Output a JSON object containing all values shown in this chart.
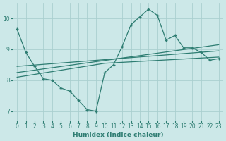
{
  "xlabel": "Humidex (Indice chaleur)",
  "ylabel": "",
  "bg_color": "#cce8e8",
  "line_color": "#2e7d72",
  "grid_color": "#aacfcf",
  "xlim": [
    -0.5,
    23.5
  ],
  "ylim": [
    6.7,
    10.5
  ],
  "xticks": [
    0,
    1,
    2,
    3,
    4,
    5,
    6,
    7,
    8,
    9,
    10,
    11,
    12,
    13,
    14,
    15,
    16,
    17,
    18,
    19,
    20,
    21,
    22,
    23
  ],
  "yticks": [
    7,
    8,
    9,
    10
  ],
  "line1_x": [
    0,
    1,
    2,
    3,
    4,
    5,
    6,
    7,
    8,
    9,
    10,
    11,
    12,
    13,
    14,
    15,
    16,
    17,
    18,
    19,
    20,
    21,
    22,
    23
  ],
  "line1_y": [
    9.65,
    8.9,
    8.45,
    8.05,
    8.0,
    7.75,
    7.65,
    7.35,
    7.05,
    7.0,
    8.25,
    8.5,
    9.1,
    9.8,
    10.05,
    10.3,
    10.1,
    9.3,
    9.45,
    9.05,
    9.05,
    8.9,
    8.65,
    8.7
  ],
  "line2_x": [
    0,
    23
  ],
  "line2_y": [
    8.45,
    8.95
  ],
  "line3_x": [
    0,
    23
  ],
  "line3_y": [
    8.25,
    9.15
  ],
  "line4_x": [
    0,
    10,
    23
  ],
  "line4_y": [
    8.1,
    8.55,
    8.75
  ]
}
